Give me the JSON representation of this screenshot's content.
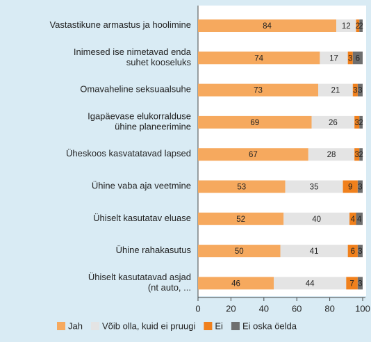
{
  "chart_data": {
    "type": "stacked_barh",
    "categories": [
      "Vastastikune armastus ja hoolimine",
      "Inimesed ise nimetavad enda\nsuhet kooseluks",
      "Omavaheline seksuaalsuhe",
      "Igapäevase elukorralduse\nühine planeerimine",
      "Üheskoos kasvatatavad lapsed",
      "Ühine vaba aja veetmine",
      "Ühiselt kasutatav eluase",
      "Ühine rahakasutus",
      "Ühiselt kasutatavad asjad\n(nt auto, ..."
    ],
    "series": [
      {
        "name": "Jah",
        "color": "#f6a95e",
        "values": [
          84,
          74,
          73,
          69,
          67,
          53,
          52,
          50,
          46
        ]
      },
      {
        "name": "Võib olla, kuid ei pruugi",
        "color": "#e4e4e4",
        "values": [
          12,
          17,
          21,
          26,
          28,
          35,
          40,
          41,
          44
        ]
      },
      {
        "name": "Ei",
        "color": "#f0801c",
        "values": [
          2,
          3,
          3,
          3,
          3,
          9,
          4,
          6,
          7
        ]
      },
      {
        "name": "Ei oska öelda",
        "color": "#6f6f6f",
        "values": [
          2,
          6,
          3,
          2,
          2,
          3,
          4,
          3,
          3
        ]
      }
    ],
    "xlim": [
      0,
      100
    ],
    "xticks": [
      0,
      20,
      40,
      60,
      80,
      100
    ]
  }
}
